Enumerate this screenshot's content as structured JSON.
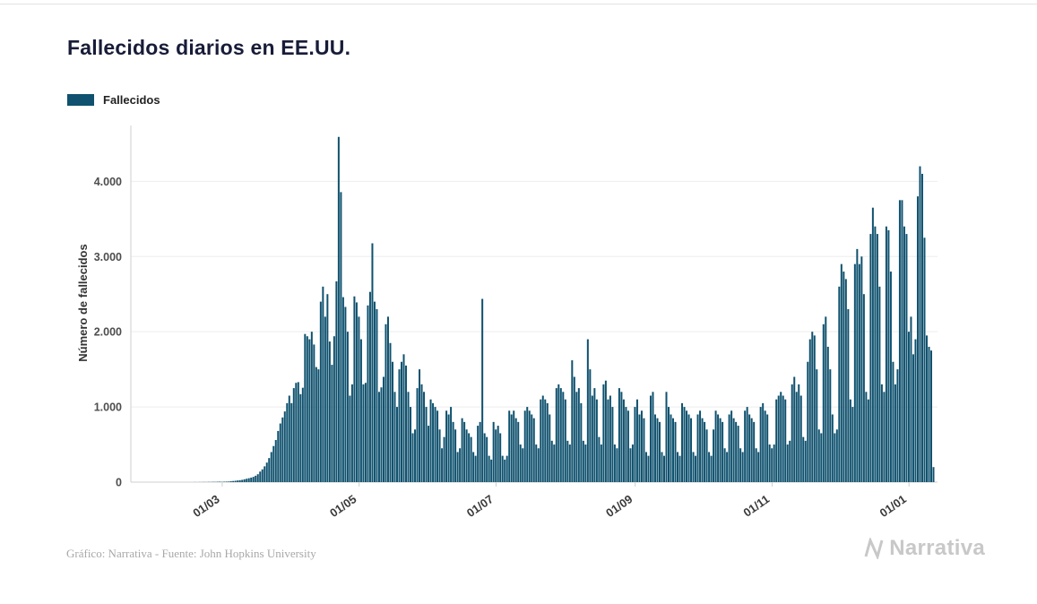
{
  "page": {
    "title": "Fallecidos diarios en EE.UU.",
    "footer_credit": "Gráfico: Narrativa - Fuente: John Hopkins University",
    "brand": "Narrativa"
  },
  "legend": {
    "label": "Fallecidos",
    "color": "#0f516e"
  },
  "chart_data": {
    "type": "bar",
    "title": "Fallecidos diarios en EE.UU.",
    "series_name": "Fallecidos",
    "xlabel": "",
    "ylabel": "Número de fallecidos",
    "start_date": "2020-01-22",
    "ylim": [
      0,
      4600
    ],
    "grid": true,
    "legend_position": "top-left",
    "bar_color": "#0f516e",
    "y_ticks": [
      0,
      1000,
      2000,
      3000,
      4000
    ],
    "y_tick_labels": [
      "0",
      "1.000",
      "2.000",
      "3.000",
      "4.000"
    ],
    "x_tick_labels": [
      "01/03",
      "01/05",
      "01/07",
      "01/09",
      "01/11",
      "01/01"
    ],
    "x_tick_indices": [
      39,
      100,
      161,
      223,
      284,
      345
    ],
    "values": [
      0,
      0,
      0,
      0,
      0,
      0,
      0,
      0,
      0,
      0,
      0,
      0,
      0,
      0,
      0,
      0,
      0,
      0,
      0,
      0,
      0,
      0,
      0,
      0,
      0,
      0,
      0,
      1,
      0,
      1,
      1,
      2,
      1,
      3,
      2,
      4,
      3,
      5,
      6,
      4,
      6,
      7,
      8,
      12,
      15,
      18,
      22,
      26,
      30,
      38,
      45,
      52,
      60,
      70,
      85,
      105,
      140,
      170,
      210,
      260,
      320,
      400,
      480,
      560,
      680,
      780,
      860,
      940,
      1050,
      1150,
      1050,
      1250,
      1320,
      1330,
      1170,
      1255,
      1970,
      1940,
      1900,
      2000,
      1830,
      1530,
      1500,
      2400,
      2600,
      2200,
      2500,
      1870,
      1560,
      1940,
      2670,
      4591,
      3857,
      2460,
      2330,
      2000,
      1150,
      1300,
      2470,
      2390,
      2200,
      1900,
      1300,
      1320,
      2350,
      2530,
      3176,
      2400,
      2300,
      1200,
      1260,
      1400,
      2100,
      2200,
      1850,
      1600,
      1200,
      1000,
      1500,
      1600,
      1700,
      1550,
      1200,
      1000,
      650,
      700,
      1250,
      1500,
      1300,
      1200,
      1000,
      750,
      1100,
      1050,
      1000,
      950,
      700,
      450,
      600,
      950,
      900,
      1000,
      800,
      700,
      400,
      450,
      850,
      800,
      700,
      650,
      600,
      400,
      350,
      750,
      800,
      2437,
      650,
      600,
      350,
      300,
      800,
      700,
      750,
      650,
      350,
      300,
      350,
      950,
      900,
      950,
      850,
      800,
      500,
      450,
      950,
      1000,
      950,
      900,
      850,
      500,
      450,
      1100,
      1150,
      1100,
      1050,
      900,
      550,
      500,
      1250,
      1300,
      1250,
      1200,
      1100,
      550,
      500,
      1620,
      1400,
      1200,
      1250,
      1050,
      550,
      500,
      1900,
      1500,
      1150,
      1250,
      1100,
      600,
      500,
      1300,
      1350,
      1100,
      1150,
      1000,
      500,
      450,
      1250,
      1200,
      1100,
      1000,
      950,
      450,
      500,
      1000,
      1100,
      900,
      950,
      850,
      400,
      350,
      1150,
      1200,
      900,
      850,
      800,
      400,
      350,
      1200,
      1000,
      900,
      850,
      800,
      400,
      350,
      1050,
      1000,
      950,
      900,
      850,
      400,
      350,
      900,
      950,
      850,
      800,
      700,
      400,
      350,
      700,
      950,
      900,
      850,
      800,
      450,
      400,
      900,
      950,
      850,
      800,
      750,
      450,
      400,
      950,
      1000,
      900,
      850,
      800,
      450,
      400,
      1000,
      1050,
      950,
      900,
      500,
      450,
      500,
      1100,
      1150,
      1200,
      1150,
      1100,
      500,
      550,
      1300,
      1400,
      1200,
      1300,
      1150,
      600,
      550,
      1600,
      1900,
      2000,
      1950,
      1500,
      700,
      650,
      2100,
      2200,
      1800,
      1500,
      900,
      650,
      700,
      2600,
      2900,
      2800,
      2700,
      2300,
      1100,
      1000,
      2900,
      3100,
      2900,
      3000,
      2500,
      1200,
      1100,
      3300,
      3650,
      3400,
      3300,
      2600,
      1300,
      1200,
      3400,
      3350,
      2800,
      1600,
      1300,
      1500,
      3750,
      3750,
      3400,
      3300,
      2000,
      2200,
      1700,
      1900,
      3800,
      4200,
      4100,
      3250,
      1950,
      1800,
      1750,
      200
    ]
  }
}
